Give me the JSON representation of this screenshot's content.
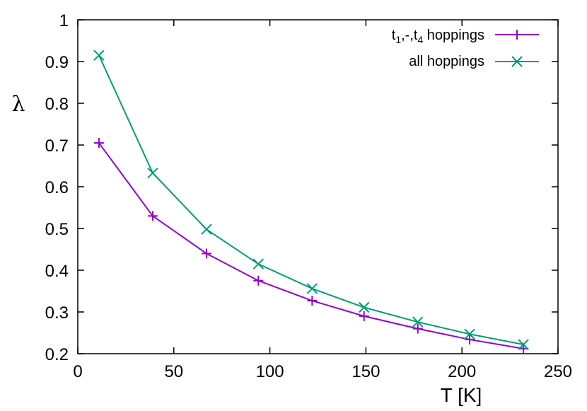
{
  "chart_data": {
    "type": "line",
    "title": "",
    "xlabel": "T [K]",
    "ylabel": "λ",
    "xlim": [
      0,
      250
    ],
    "ylim": [
      0.2,
      1.0
    ],
    "xticks": [
      0,
      50,
      100,
      150,
      200,
      250
    ],
    "xtick_labels": [
      "0",
      "50",
      "100",
      "150",
      "200",
      "250"
    ],
    "yticks": [
      0.2,
      0.3,
      0.4,
      0.5,
      0.6,
      0.7,
      0.8,
      0.9,
      1.0
    ],
    "ytick_labels": [
      "0.2",
      "0.3",
      "0.4",
      "0.5",
      "0.6",
      "0.7",
      "0.8",
      "0.9",
      "1"
    ],
    "grid": false,
    "legend_position": "top-right",
    "x": [
      11,
      39,
      67,
      94,
      122,
      149,
      177,
      204,
      232
    ],
    "series": [
      {
        "name": "t1,-,t4 hoppings",
        "legend": {
          "t": "t",
          "sub1": "1",
          "mid": ",-,t",
          "sub2": "4",
          "rest": " hoppings"
        },
        "marker": "plus",
        "color": "#9400d3",
        "values": [
          0.705,
          0.53,
          0.44,
          0.375,
          0.327,
          0.29,
          0.26,
          0.234,
          0.212
        ]
      },
      {
        "name": "all hoppings",
        "marker": "cross",
        "color": "#009e73",
        "values": [
          0.915,
          0.633,
          0.498,
          0.415,
          0.356,
          0.311,
          0.276,
          0.247,
          0.222
        ]
      }
    ]
  }
}
